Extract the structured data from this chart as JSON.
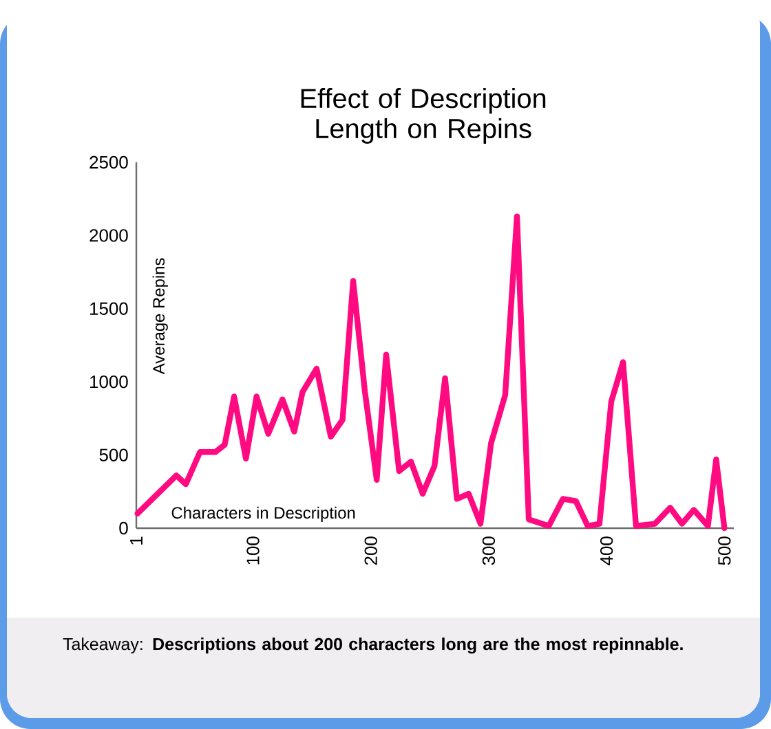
{
  "chart_data": {
    "type": "line",
    "title": "Effect of Description Length on Repins",
    "xlabel": "Characters in Description",
    "ylabel": "Average Repins",
    "annotations": [
      "Takeaway: **Descriptions about 200 characters long are the most repinnable.**"
    ],
    "x": [
      2,
      35,
      43,
      55,
      68,
      76,
      84,
      94,
      103,
      113,
      125,
      135,
      142,
      154,
      166,
      176,
      185,
      195,
      205,
      213,
      224,
      234,
      244,
      254,
      263,
      273,
      283,
      293,
      302,
      314,
      324,
      334,
      351,
      363,
      374,
      384,
      394,
      404,
      414,
      425,
      441,
      454,
      464,
      474,
      486,
      493,
      500
    ],
    "series": [
      {
        "color": "#ff0a80",
        "values": [
          100,
          360,
          300,
          520,
          520,
          570,
          900,
          475,
          900,
          645,
          880,
          660,
          930,
          1090,
          625,
          740,
          1690,
          930,
          330,
          1185,
          390,
          455,
          235,
          425,
          1025,
          200,
          235,
          30,
          580,
          910,
          2130,
          60,
          15,
          200,
          185,
          15,
          30,
          865,
          1135,
          15,
          30,
          140,
          30,
          125,
          15,
          470,
          0
        ]
      }
    ],
    "xlim": [
      1,
      508
    ],
    "ylim": [
      0,
      2500
    ],
    "xticks": [
      1,
      100,
      200,
      300,
      400,
      500
    ],
    "yticks": [
      0,
      500,
      1000,
      1500,
      2000,
      2500
    ]
  }
}
